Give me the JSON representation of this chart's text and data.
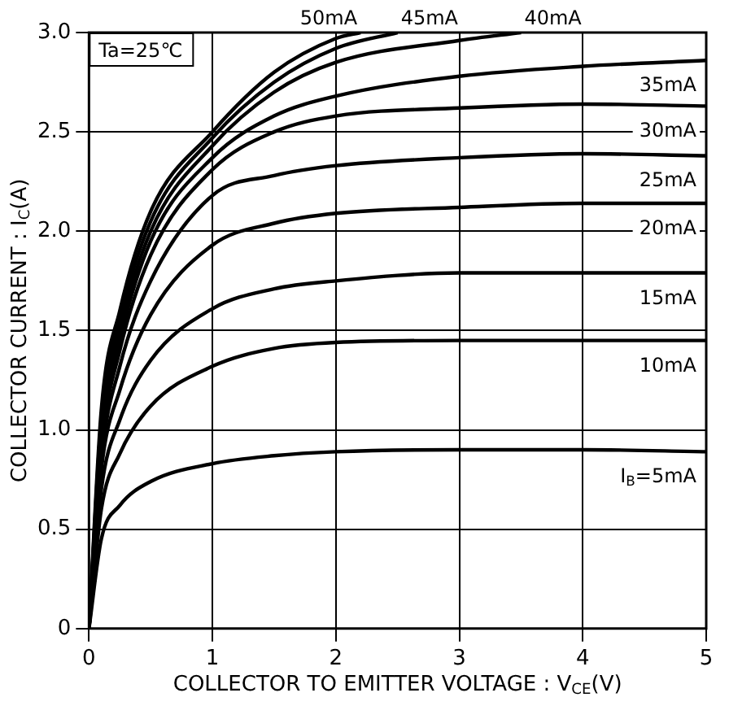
{
  "chart_data": {
    "type": "line",
    "xlabel": "COLLECTOR TO EMITTER VOLTAGE : V$_{CE}$(V)",
    "ylabel": "COLLECTOR CURRENT : I$_{C}$(A)",
    "annotations": [
      "Ta=25℃"
    ],
    "xlim": [
      0,
      5
    ],
    "ylim": [
      0,
      3
    ],
    "xticks": [
      0,
      1,
      2,
      3,
      4,
      5
    ],
    "yticks": [
      0,
      0.5,
      {
        "value": 1,
        "label": "1.0"
      },
      1.5,
      {
        "value": 2,
        "label": "2.0"
      },
      2.5,
      {
        "value": 3,
        "label": "3.0"
      }
    ],
    "grid": true,
    "legend": false,
    "marker": "none",
    "line_style": "solid",
    "series": [
      {
        "name": "I$_{B}$=5mA",
        "color": "#000000",
        "x": [
          0,
          0.1,
          0.25,
          0.5,
          1,
          1.5,
          2,
          3,
          4,
          5
        ],
        "values": [
          0,
          0.45,
          0.62,
          0.74,
          0.83,
          0.87,
          0.89,
          0.9,
          0.9,
          0.89
        ]
      },
      {
        "name": "10mA",
        "color": "#000000",
        "x": [
          0,
          0.1,
          0.25,
          0.5,
          1,
          1.5,
          2,
          3,
          4,
          5
        ],
        "values": [
          0,
          0.6,
          0.88,
          1.12,
          1.32,
          1.41,
          1.44,
          1.45,
          1.45,
          1.45
        ]
      },
      {
        "name": "15mA",
        "color": "#000000",
        "x": [
          0,
          0.1,
          0.25,
          0.5,
          1,
          1.5,
          2,
          3,
          4,
          5
        ],
        "values": [
          0,
          0.7,
          1.05,
          1.35,
          1.61,
          1.71,
          1.75,
          1.79,
          1.79,
          1.79
        ]
      },
      {
        "name": "20mA",
        "color": "#000000",
        "x": [
          0,
          0.1,
          0.25,
          0.5,
          1,
          1.5,
          2,
          3,
          4,
          5
        ],
        "values": [
          0,
          0.8,
          1.2,
          1.58,
          1.93,
          2.04,
          2.09,
          2.12,
          2.14,
          2.14
        ]
      },
      {
        "name": "25mA",
        "color": "#000000",
        "x": [
          0,
          0.1,
          0.25,
          0.5,
          1,
          1.5,
          2,
          3,
          4,
          5
        ],
        "values": [
          0,
          0.85,
          1.32,
          1.75,
          2.18,
          2.28,
          2.33,
          2.37,
          2.39,
          2.38
        ]
      },
      {
        "name": "30mA",
        "color": "#000000",
        "x": [
          0,
          0.1,
          0.25,
          0.5,
          1,
          1.5,
          2,
          3,
          4,
          5
        ],
        "values": [
          0,
          0.9,
          1.4,
          1.88,
          2.31,
          2.5,
          2.58,
          2.62,
          2.64,
          2.63
        ]
      },
      {
        "name": "35mA",
        "color": "#000000",
        "x": [
          0,
          0.1,
          0.25,
          0.5,
          1,
          1.5,
          2,
          3,
          4,
          5
        ],
        "values": [
          0,
          0.95,
          1.45,
          1.95,
          2.37,
          2.58,
          2.68,
          2.78,
          2.83,
          2.86
        ]
      },
      {
        "name": "40mA",
        "color": "#000000",
        "x": [
          0,
          0.1,
          0.25,
          0.5,
          1,
          1.5,
          2,
          3,
          3.5
        ],
        "values": [
          0,
          1,
          1.5,
          2,
          2.43,
          2.7,
          2.85,
          2.96,
          3
        ]
      },
      {
        "name": "45mA",
        "color": "#000000",
        "x": [
          0,
          0.1,
          0.25,
          0.5,
          1,
          1.5,
          2,
          2.5
        ],
        "values": [
          0,
          1.05,
          1.55,
          2.05,
          2.47,
          2.75,
          2.92,
          3
        ]
      },
      {
        "name": "50mA",
        "color": "#000000",
        "x": [
          0,
          0.1,
          0.25,
          0.5,
          1,
          1.5,
          2,
          2.2
        ],
        "values": [
          0,
          1.1,
          1.6,
          2.1,
          2.5,
          2.8,
          2.97,
          3
        ]
      }
    ]
  }
}
